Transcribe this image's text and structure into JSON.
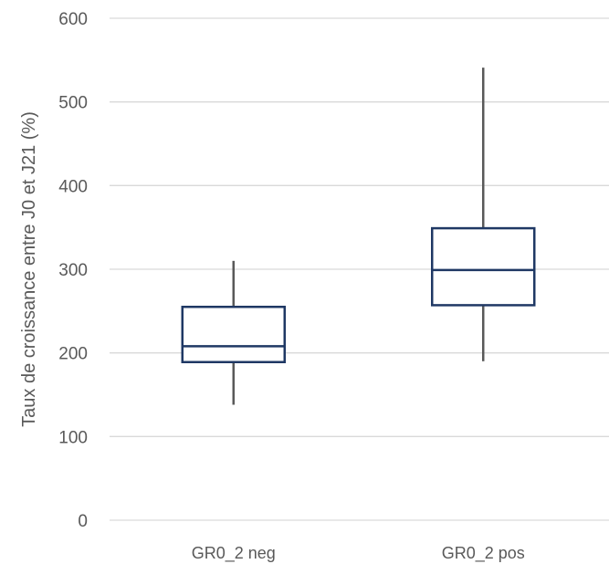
{
  "chart_data": {
    "type": "box",
    "ylabel": "Taux de croissance entre J0 et J21 (%)",
    "ylim": [
      0,
      600
    ],
    "yticks": [
      0,
      100,
      200,
      300,
      400,
      500,
      600
    ],
    "grid": true,
    "categories": [
      "GR0_2 neg",
      "GR0_2 pos"
    ],
    "boxes": [
      {
        "category": "GR0_2 neg",
        "min": 138,
        "q1": 189,
        "median": 208,
        "q3": 255,
        "max": 310
      },
      {
        "category": "GR0_2 pos",
        "min": 190,
        "q1": 257,
        "median": 299,
        "q3": 349,
        "max": 541
      }
    ],
    "colors": {
      "box": "#1f3864",
      "whisker": "#595959",
      "grid": "#d9d9d9",
      "text": "#595959"
    }
  }
}
